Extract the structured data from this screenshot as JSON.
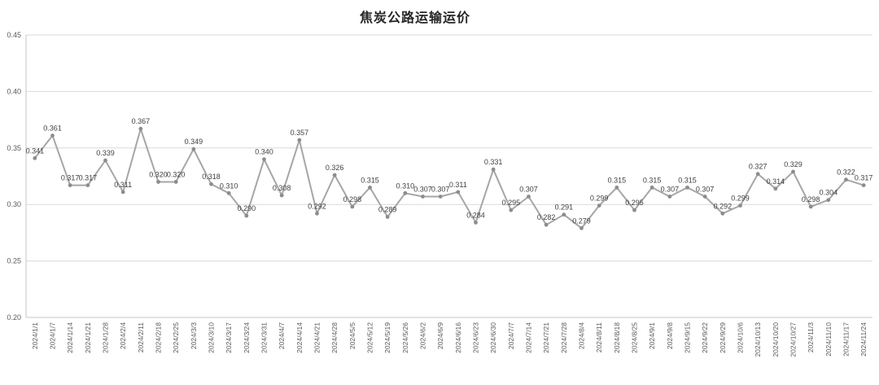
{
  "chart_data": {
    "type": "line",
    "title": "焦炭公路运输运价",
    "xlabel": "",
    "ylabel": "",
    "ylim": [
      0.2,
      0.45
    ],
    "ytick_step": 0.05,
    "grid": "horizontal",
    "legend": "none",
    "data_labels": "above-points",
    "categories": [
      "2024/1/1",
      "2024/1/7",
      "2024/1/14",
      "2024/1/21",
      "2024/1/28",
      "2024/2/4",
      "2024/2/11",
      "2024/2/18",
      "2024/2/25",
      "2024/3/3",
      "2024/3/10",
      "2024/3/17",
      "2024/3/24",
      "2024/3/31",
      "2024/4/7",
      "2024/4/14",
      "2024/4/21",
      "2024/4/28",
      "2024/5/5",
      "2024/5/12",
      "2024/5/19",
      "2024/5/26",
      "2024/6/2",
      "2024/6/9",
      "2024/6/16",
      "2024/6/23",
      "2024/6/30",
      "2024/7/7",
      "2024/7/14",
      "2024/7/21",
      "2024/7/28",
      "2024/8/4",
      "2024/8/11",
      "2024/8/18",
      "2024/8/25",
      "2024/9/1",
      "2024/9/8",
      "2024/9/15",
      "2024/9/22",
      "2024/9/29",
      "2024/10/6",
      "2024/10/13",
      "2024/10/20",
      "2024/10/27",
      "2024/11/3",
      "2024/11/10",
      "2024/11/17",
      "2024/11/24"
    ],
    "values": [
      0.341,
      0.361,
      0.317,
      0.317,
      0.339,
      0.311,
      0.367,
      0.32,
      0.32,
      0.349,
      0.318,
      0.31,
      0.29,
      0.34,
      0.308,
      0.357,
      0.292,
      0.326,
      0.298,
      0.315,
      0.289,
      0.31,
      0.307,
      0.307,
      0.311,
      0.284,
      0.331,
      0.295,
      0.307,
      0.282,
      0.291,
      0.279,
      0.299,
      0.315,
      0.295,
      0.315,
      0.307,
      0.315,
      0.307,
      0.292,
      0.299,
      0.327,
      0.314,
      0.329,
      0.298,
      0.304,
      0.322,
      0.317
    ],
    "colors": {
      "line": "#a6a6a6",
      "marker": "#8c8c8c",
      "data_label": "#404040",
      "axis_label": "#595959",
      "gridline": "#d9d9d9",
      "axis_line": "#c6c6c6",
      "title": "#262626"
    }
  }
}
